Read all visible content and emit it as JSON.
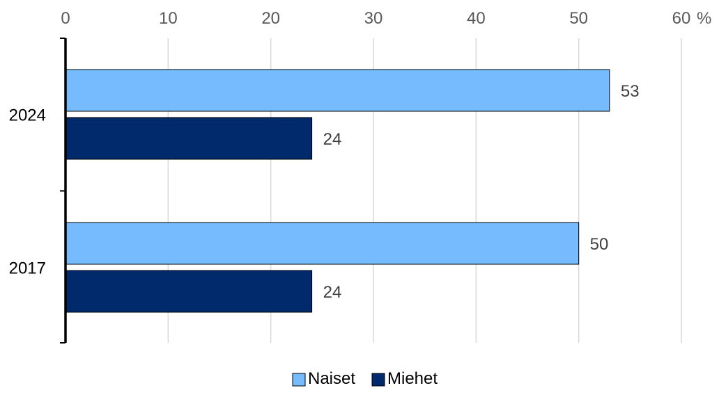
{
  "chart_data": {
    "type": "bar",
    "orientation": "horizontal",
    "categories": [
      "2024",
      "2017"
    ],
    "series": [
      {
        "name": "Naiset",
        "values": [
          53,
          50
        ],
        "color": "#75BBFD"
      },
      {
        "name": "Miehet",
        "values": [
          24,
          24
        ],
        "color": "#002A6C"
      }
    ],
    "data_labels": [
      [
        "53",
        "50"
      ],
      [
        "24",
        "24"
      ]
    ],
    "x_ticks": [
      "0",
      "10",
      "20",
      "30",
      "40",
      "50",
      "60"
    ],
    "x_unit": "%",
    "xlim": [
      0,
      60
    ],
    "tick_step": 10,
    "grid": true,
    "axis_position": "top",
    "legend_position": "bottom-center",
    "title": "",
    "xlabel": "",
    "ylabel": ""
  },
  "colors": {
    "grid": "#D9D9D9",
    "axis": "#000000",
    "tick_text": "#595959",
    "category_text": "#000000",
    "label_text": "#404040",
    "legend_text": "#000000"
  }
}
